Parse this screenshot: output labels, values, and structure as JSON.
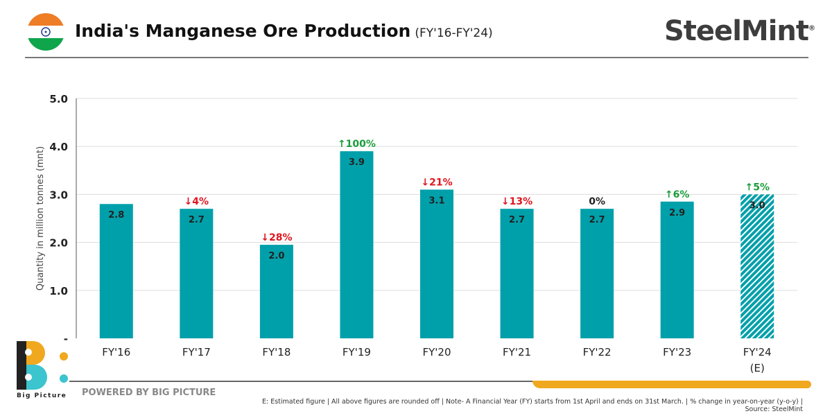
{
  "header": {
    "title": "India's Manganese Ore Production",
    "subtitle": "(FY'16-FY'24)",
    "brand": "SteelMint",
    "brand_mark": "®"
  },
  "footer": {
    "powered_by": "POWERED BY BIG PICTURE",
    "logo_text": "Big Picture",
    "note": "E: Estimated figure | All above figures are rounded off | Note- A Financial Year (FY) starts from 1st April and ends on 31st March. | % change in year-on-year (y-o-y) | Source: SteelMint"
  },
  "colors": {
    "bar": "#00a0aa",
    "up": "#1a9e3a",
    "down": "#e0141e",
    "accent": "#f0a81e"
  },
  "chart_data": {
    "type": "bar",
    "title": "India's Manganese Ore Production",
    "ylabel": "Quantity in million tonnes (mnt)",
    "ylim": [
      0,
      5
    ],
    "yticks": [
      "-",
      "1.0",
      "2.0",
      "3.0",
      "4.0",
      "5.0"
    ],
    "grid": true,
    "categories": [
      "FY'16",
      "FY'17",
      "FY'18",
      "FY'19",
      "FY'20",
      "FY'21",
      "FY'22",
      "FY'23",
      "FY'24"
    ],
    "category_sublabels": [
      "",
      "",
      "",
      "",
      "",
      "",
      "",
      "",
      "(E)"
    ],
    "values": [
      2.8,
      2.7,
      1.95,
      3.9,
      3.1,
      2.7,
      2.7,
      2.85,
      3.0
    ],
    "data_labels": [
      "2.8",
      "2.7",
      "2.0",
      "3.9",
      "3.1",
      "2.7",
      "2.7",
      "2.9",
      "3.0"
    ],
    "yoy_change": [
      "",
      "4%",
      "28%",
      "100%",
      "21%",
      "13%",
      "0%",
      "6%",
      "5%"
    ],
    "yoy_direction": [
      "",
      "down",
      "down",
      "up",
      "down",
      "down",
      "flat",
      "up",
      "up"
    ],
    "estimated": [
      false,
      false,
      false,
      false,
      false,
      false,
      false,
      false,
      true
    ]
  }
}
